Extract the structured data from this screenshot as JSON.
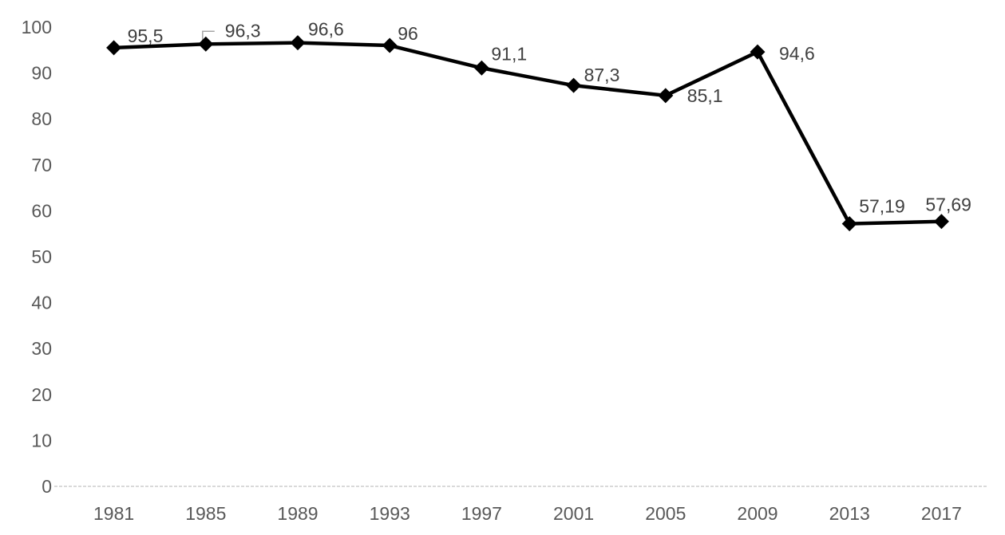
{
  "chart_data": {
    "type": "line",
    "title": "",
    "xlabel": "",
    "ylabel": "",
    "categories": [
      "1981",
      "1985",
      "1989",
      "1993",
      "1997",
      "2001",
      "2005",
      "2009",
      "2013",
      "2017"
    ],
    "values": [
      95.5,
      96.3,
      96.6,
      96,
      91.1,
      87.3,
      85.1,
      94.6,
      57.19,
      57.69
    ],
    "value_labels": [
      "95,5",
      "96,3",
      "96,6",
      "96",
      "91,1",
      "87,3",
      "85,1",
      "94,6",
      "57,19",
      "57,69"
    ],
    "decimal_separator": ",",
    "ylim": [
      0,
      100
    ],
    "yticks": [
      0,
      10,
      20,
      30,
      40,
      50,
      60,
      70,
      80,
      90,
      100
    ],
    "grid": false,
    "legend": "none",
    "marker": "diamond",
    "label_leader_index": 1,
    "colors": {
      "line": "#000000",
      "marker": "#000000",
      "data_label": "#404040",
      "tick_label": "#595959",
      "axis_line": "#d9d9d9",
      "leader_line": "#a6a6a6",
      "background": "#ffffff"
    }
  }
}
